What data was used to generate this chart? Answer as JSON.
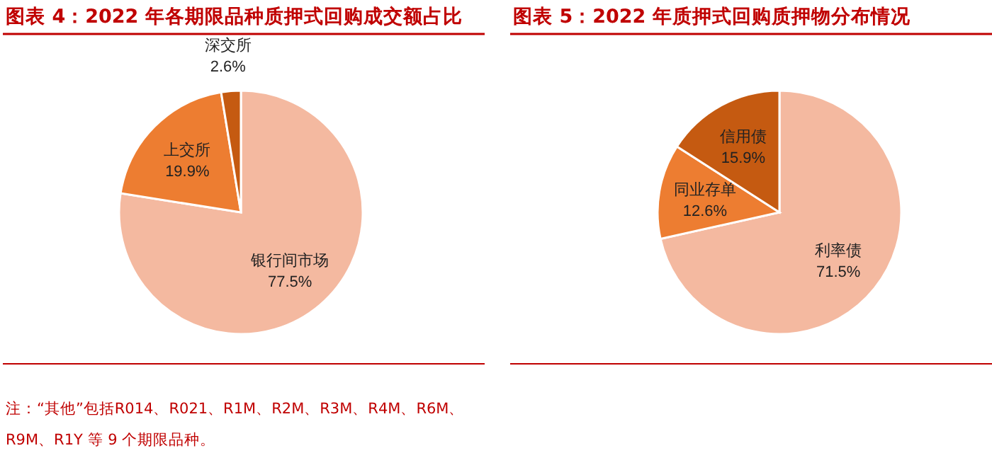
{
  "chart_data": [
    {
      "type": "pie",
      "title": "图表 4：2022 年各期限品种质押式回购成交额占比",
      "categories": [
        "银行间市场",
        "上交所",
        "深交所"
      ],
      "values": [
        77.5,
        19.9,
        2.6
      ],
      "colors": [
        "#f4b9a0",
        "#ed7d31",
        "#c55a11"
      ],
      "value_labels": [
        "77.5%",
        "19.9%",
        "2.6%"
      ],
      "annotations": [
        "注：“其他”包括R014、R021、R1M、R2M、R3M、R4M、R6M、R9M、R1Y 等 9 个期限品种。"
      ]
    },
    {
      "type": "pie",
      "title": "图表 5：2022 年质押式回购质押物分布情况",
      "categories": [
        "利率债",
        "同业存单",
        "信用债"
      ],
      "values": [
        71.5,
        12.6,
        15.9
      ],
      "colors": [
        "#f4b9a0",
        "#ed7d31",
        "#c55a11"
      ],
      "value_labels": [
        "71.5%",
        "12.6%",
        "15.9%"
      ]
    }
  ]
}
